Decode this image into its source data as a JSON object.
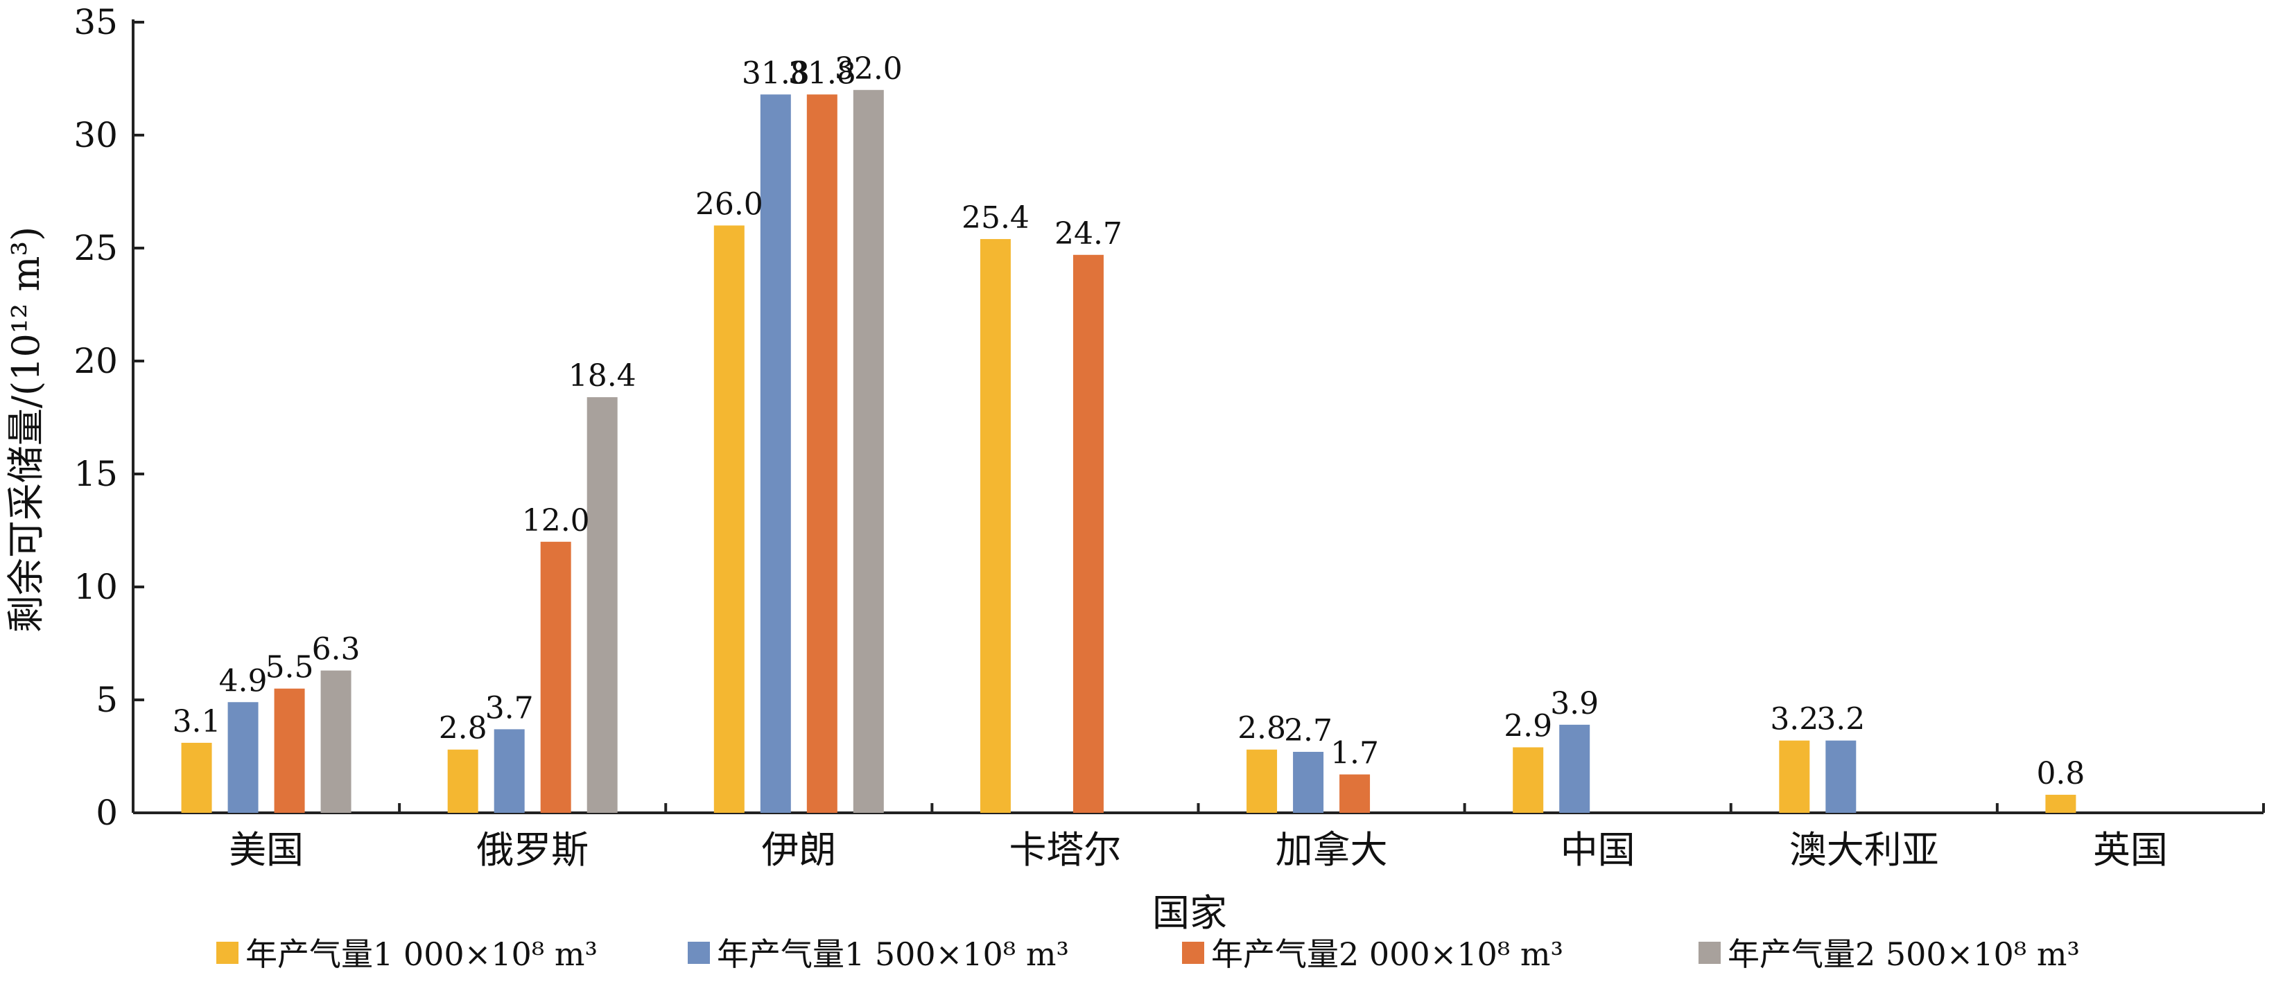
{
  "chart_data": {
    "type": "bar",
    "xlabel": "国家",
    "ylabel": "剩余可采储量/(10¹² m³)",
    "ylim": [
      0,
      35
    ],
    "yticks": [
      "0",
      "5",
      "10",
      "15",
      "20",
      "25",
      "30",
      "35"
    ],
    "categories": [
      "美国",
      "俄罗斯",
      "伊朗",
      "卡塔尔",
      "加拿大",
      "中国",
      "澳大利亚",
      "英国"
    ],
    "series": [
      {
        "name": "年产气量1 000×10⁸ m³",
        "color": "#F4B731",
        "values": [
          3.1,
          2.8,
          26.0,
          25.4,
          2.8,
          2.9,
          3.2,
          0.8
        ]
      },
      {
        "name": "年产气量1 500×10⁸ m³",
        "color": "#6F8EBF",
        "values": [
          4.9,
          3.7,
          31.8,
          null,
          2.7,
          3.9,
          3.2,
          null
        ]
      },
      {
        "name": "年产气量2 000×10⁸ m³",
        "color": "#E0733A",
        "values": [
          5.5,
          12.0,
          31.8,
          24.7,
          1.7,
          null,
          null,
          null
        ]
      },
      {
        "name": "年产气量2 500×10⁸ m³",
        "color": "#A8A19C",
        "values": [
          6.3,
          18.4,
          32.0,
          null,
          null,
          null,
          null,
          null
        ]
      }
    ],
    "grid": false,
    "legend_position": "bottom"
  }
}
